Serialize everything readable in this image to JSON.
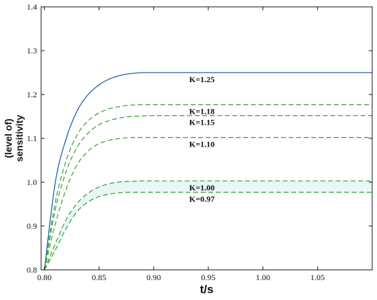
{
  "chart_data": {
    "type": "line",
    "title": "",
    "xlabel": "t/s",
    "ylabel_line1": "(level of)",
    "ylabel_line2": "sensitivity",
    "xlim": [
      0.797,
      1.1
    ],
    "ylim": [
      0.8,
      1.4
    ],
    "xticks": [
      0.8,
      0.85,
      0.9,
      0.95,
      1.0,
      1.05
    ],
    "xtick_labels": [
      "0.80",
      "0.85",
      "0.90",
      "0.95",
      "1.00",
      "1.05"
    ],
    "yticks": [
      0.8,
      0.9,
      1.0,
      1.1,
      1.2,
      1.3,
      1.4
    ],
    "ytick_labels": [
      "0.8",
      "0.9",
      "1.0",
      "1.1",
      "1.2",
      "1.3",
      "1.4"
    ],
    "grid": false,
    "x": [
      0.8,
      0.81,
      0.82,
      0.83,
      0.84,
      0.85,
      0.86,
      0.87,
      0.88,
      0.89,
      0.9,
      0.95,
      1.0,
      1.05,
      1.1
    ],
    "series": [
      {
        "name": "K=1.25",
        "color": "#1f5fa8",
        "dash": "solid",
        "values": [
          0.8,
          1.0,
          1.1,
          1.163,
          1.2,
          1.222,
          1.236,
          1.244,
          1.248,
          1.25,
          1.25,
          1.25,
          1.25,
          1.25,
          1.25
        ]
      },
      {
        "name": "K=1.18",
        "color": "#2ca02c",
        "dash": "dashed",
        "values": [
          0.8,
          0.955,
          1.05,
          1.108,
          1.14,
          1.158,
          1.168,
          1.173,
          1.176,
          1.177,
          1.177,
          1.177,
          1.177,
          1.177,
          1.177
        ]
      },
      {
        "name": "K=1.15",
        "color": "#2ca02c",
        "dash": "dashed",
        "values": [
          0.8,
          0.938,
          1.025,
          1.08,
          1.112,
          1.131,
          1.141,
          1.147,
          1.15,
          1.151,
          1.152,
          1.152,
          1.152,
          1.152,
          1.152
        ]
      },
      {
        "name": "K=1.10",
        "color": "#2ca02c",
        "dash": "dashed",
        "values": [
          0.8,
          0.905,
          0.985,
          1.04,
          1.071,
          1.088,
          1.096,
          1.1,
          1.102,
          1.102,
          1.102,
          1.102,
          1.102,
          1.102,
          1.102
        ]
      },
      {
        "name": "K=1.00",
        "color": "#2ca02c",
        "dash": "dashed",
        "values": [
          0.8,
          0.86,
          0.915,
          0.952,
          0.975,
          0.989,
          0.997,
          1.001,
          1.002,
          1.003,
          1.003,
          1.003,
          1.003,
          1.003,
          1.003
        ]
      },
      {
        "name": "K=0.97",
        "color": "#2ca02c",
        "dash": "dashed",
        "values": [
          0.8,
          0.845,
          0.895,
          0.933,
          0.955,
          0.967,
          0.973,
          0.976,
          0.977,
          0.977,
          0.977,
          0.977,
          0.977,
          0.977,
          0.977
        ]
      }
    ],
    "shaded_band": {
      "color": "#e8f6f4",
      "lower": "K=0.97",
      "upper": "K=1.00"
    },
    "labels": [
      {
        "text": "K=1.25",
        "series": "K=1.25"
      },
      {
        "text": "K=1.18",
        "series": "K=1.18"
      },
      {
        "text": "K=1.15",
        "series": "K=1.15"
      },
      {
        "text": "K=1.10",
        "series": "K=1.10"
      },
      {
        "text": "K=1.00",
        "series": "K=1.00"
      },
      {
        "text": "K=0.97",
        "series": "K=0.97"
      }
    ]
  }
}
